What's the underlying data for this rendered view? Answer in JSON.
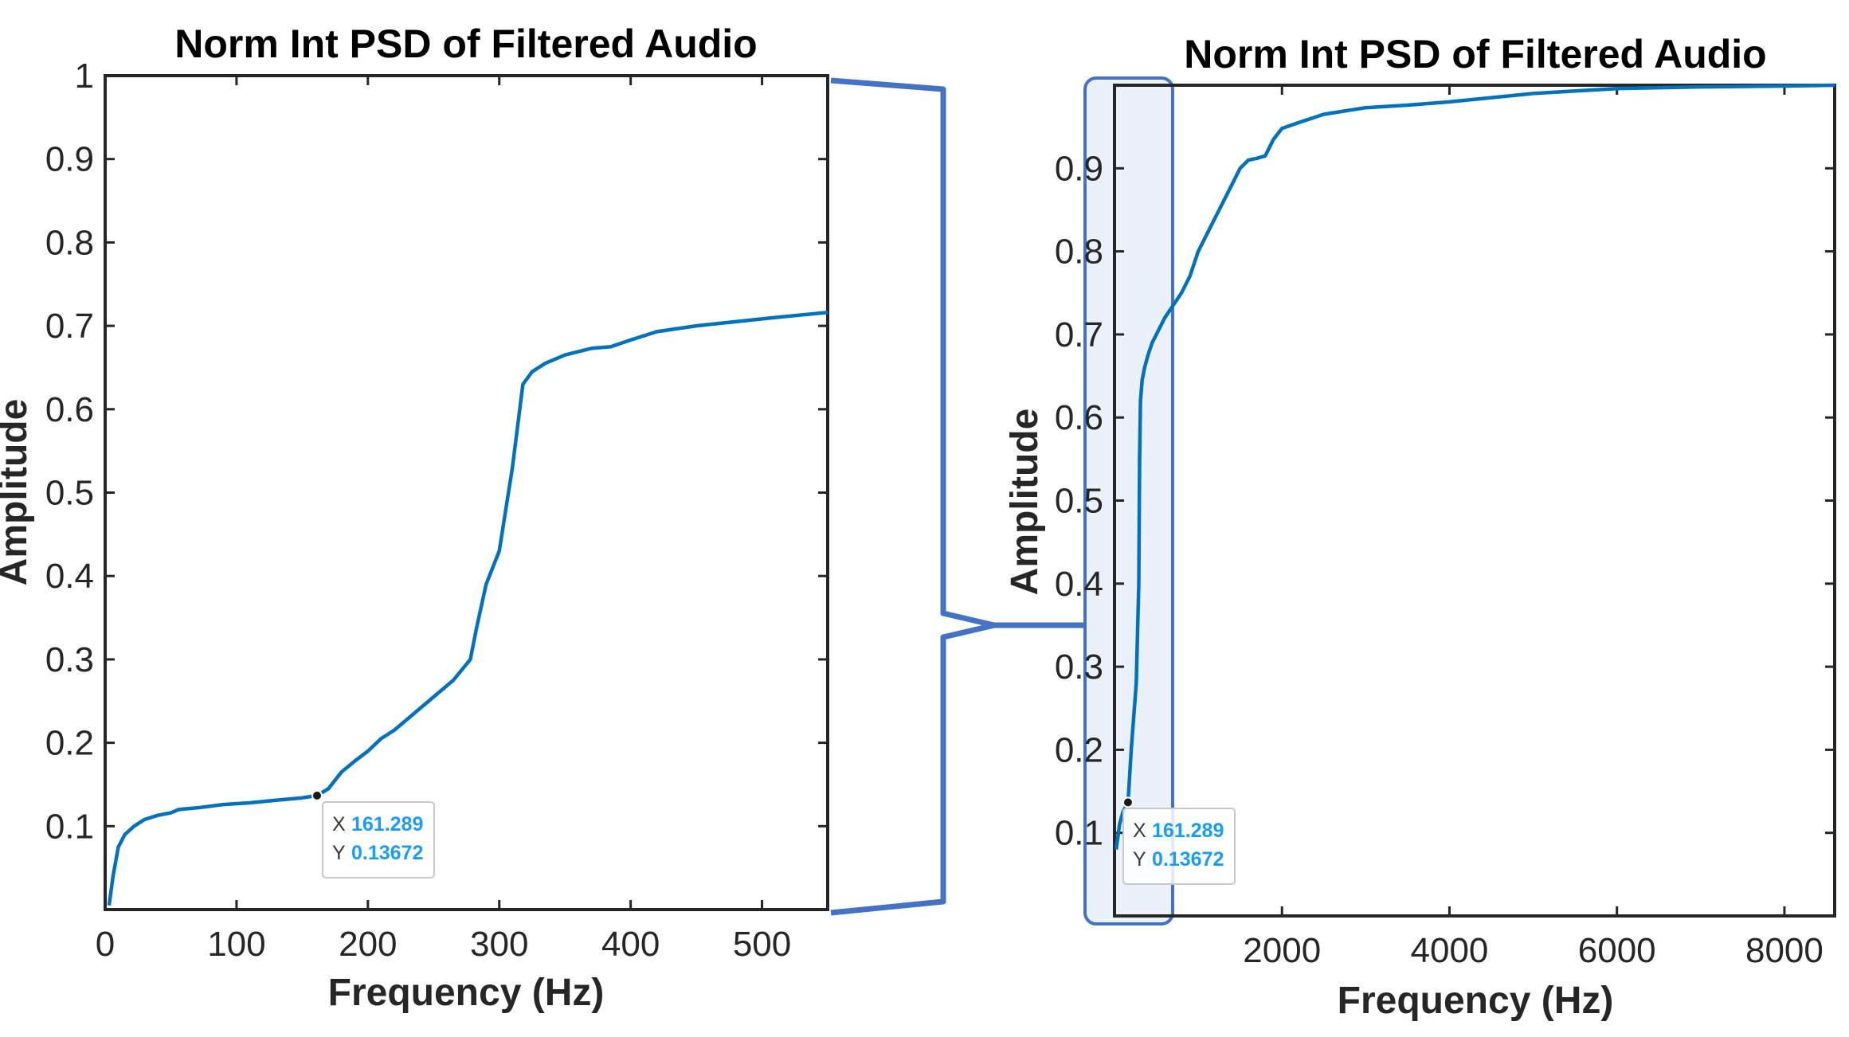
{
  "chart_data": [
    {
      "type": "line",
      "title": "Norm Int PSD of Filtered Audio",
      "xlabel": "Frequency (Hz)",
      "ylabel": "Amplitude",
      "xlim": [
        0,
        550
      ],
      "ylim": [
        0,
        1
      ],
      "xticks": [
        0,
        100,
        200,
        300,
        400,
        500
      ],
      "xtick_labels": [
        "0",
        "100",
        "200",
        "300",
        "400",
        "500"
      ],
      "yticks": [
        0.1,
        0.2,
        0.3,
        0.4,
        0.5,
        0.6,
        0.7,
        0.8,
        0.9,
        1
      ],
      "ytick_labels": [
        "0.1",
        "0.2",
        "0.3",
        "0.4",
        "0.5",
        "0.6",
        "0.7",
        "0.8",
        "0.9",
        "1"
      ],
      "grid": false,
      "line_color": "#0072BD",
      "series": [
        {
          "x": [
            3,
            6,
            10,
            15,
            22,
            30,
            40,
            50,
            56,
            70,
            90,
            110,
            130,
            150,
            161.289,
            170,
            180,
            190,
            200,
            210,
            220,
            235,
            250,
            265,
            278,
            283,
            290,
            300,
            310,
            318,
            325,
            335,
            350,
            370,
            385,
            400,
            420,
            450,
            480,
            510,
            550
          ],
          "y": [
            0.005,
            0.04,
            0.075,
            0.09,
            0.1,
            0.108,
            0.113,
            0.116,
            0.12,
            0.122,
            0.126,
            0.128,
            0.131,
            0.134,
            0.13672,
            0.145,
            0.165,
            0.178,
            0.19,
            0.205,
            0.215,
            0.235,
            0.255,
            0.275,
            0.3,
            0.34,
            0.39,
            0.43,
            0.53,
            0.63,
            0.645,
            0.655,
            0.665,
            0.673,
            0.675,
            0.683,
            0.693,
            0.7,
            0.705,
            0.71,
            0.716
          ]
        }
      ],
      "datatip": {
        "x_label": "X",
        "x_value": "161.289",
        "y_label": "Y",
        "y_value": "0.13672",
        "x": 161.289,
        "y": 0.13672
      }
    },
    {
      "type": "line",
      "title": "Norm Int PSD of Filtered Audio",
      "xlabel": "Frequency (Hz)",
      "ylabel": "Amplitude",
      "xlim": [
        0,
        8600
      ],
      "ylim": [
        0,
        1
      ],
      "xticks": [
        2000,
        4000,
        6000,
        8000
      ],
      "xtick_labels": [
        "2000",
        "4000",
        "6000",
        "8000"
      ],
      "yticks": [
        0.1,
        0.2,
        0.3,
        0.4,
        0.5,
        0.6,
        0.7,
        0.8,
        0.9
      ],
      "ytick_labels": [
        "0.1",
        "0.2",
        "0.3",
        "0.4",
        "0.5",
        "0.6",
        "0.7",
        "0.8",
        "0.9"
      ],
      "grid": false,
      "line_color": "#0072BD",
      "series": [
        {
          "x": [
            20,
            60,
            100,
            161.289,
            200,
            260,
            290,
            300,
            310,
            330,
            360,
            400,
            450,
            500,
            550,
            600,
            700,
            800,
            900,
            1000,
            1100,
            1200,
            1300,
            1400,
            1500,
            1600,
            1700,
            1800,
            1900,
            2000,
            2200,
            2500,
            3000,
            3500,
            4000,
            4500,
            5000,
            5500,
            6000,
            7000,
            8000,
            8600
          ],
          "y": [
            0.08,
            0.11,
            0.125,
            0.13672,
            0.2,
            0.28,
            0.4,
            0.55,
            0.62,
            0.645,
            0.66,
            0.675,
            0.69,
            0.7,
            0.71,
            0.72,
            0.735,
            0.75,
            0.77,
            0.8,
            0.82,
            0.84,
            0.86,
            0.88,
            0.9,
            0.91,
            0.912,
            0.915,
            0.935,
            0.948,
            0.955,
            0.965,
            0.973,
            0.976,
            0.98,
            0.985,
            0.99,
            0.993,
            0.996,
            0.998,
            0.999,
            1.0
          ]
        }
      ],
      "datatip": {
        "x_label": "X",
        "x_value": "161.289",
        "y_label": "Y",
        "y_value": "0.13672",
        "x": 161.289,
        "y": 0.13672
      },
      "zoom_region": {
        "x": [
          0,
          700
        ]
      }
    }
  ],
  "colors": {
    "line": "#0072BD",
    "connector": "#4472C4",
    "highlight_fill": "#dbe6f8",
    "datatip_value": "#1a9bff"
  }
}
